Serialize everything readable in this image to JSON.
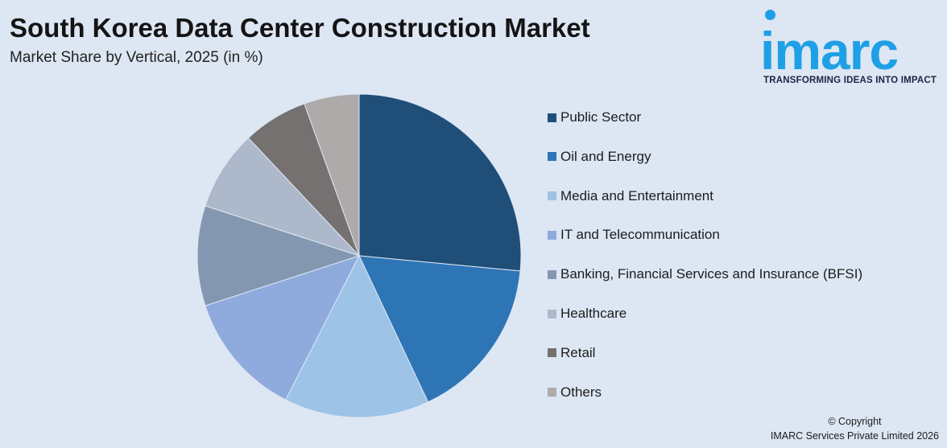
{
  "header": {
    "title": "South Korea Data Center Construction Market",
    "subtitle": "Market Share by Vertical, 2025 (in %)"
  },
  "logo": {
    "wordmark": "imarc",
    "tagline": "TRANSFORMING IDEAS INTO IMPACT",
    "color": "#1ea0e6"
  },
  "footer": {
    "copyright_line1": "© Copyright",
    "copyright_line2": "IMARC Services Private Limited 2026"
  },
  "chart_data": {
    "type": "pie",
    "title": "South Korea Data Center Construction Market",
    "subtitle": "Market Share by Vertical, 2025 (in %)",
    "legend_position": "right",
    "start_angle_deg": 0,
    "direction": "clockwise",
    "slices": [
      {
        "name": "Public Sector",
        "value": 26.5,
        "color": "#1f4e79"
      },
      {
        "name": "Oil and Energy",
        "value": 16.5,
        "color": "#2e75b6"
      },
      {
        "name": "Media and Entertainment",
        "value": 14.5,
        "color": "#9dc3e6"
      },
      {
        "name": "IT and Telecommunication",
        "value": 12.5,
        "color": "#8faadc"
      },
      {
        "name": "Banking, Financial Services and Insurance (BFSI)",
        "value": 10.0,
        "color": "#8497b0"
      },
      {
        "name": "Healthcare",
        "value": 8.0,
        "color": "#adb9ca"
      },
      {
        "name": "Retail",
        "value": 6.5,
        "color": "#767171"
      },
      {
        "name": "Others",
        "value": 5.5,
        "color": "#aeaaaa"
      }
    ]
  }
}
